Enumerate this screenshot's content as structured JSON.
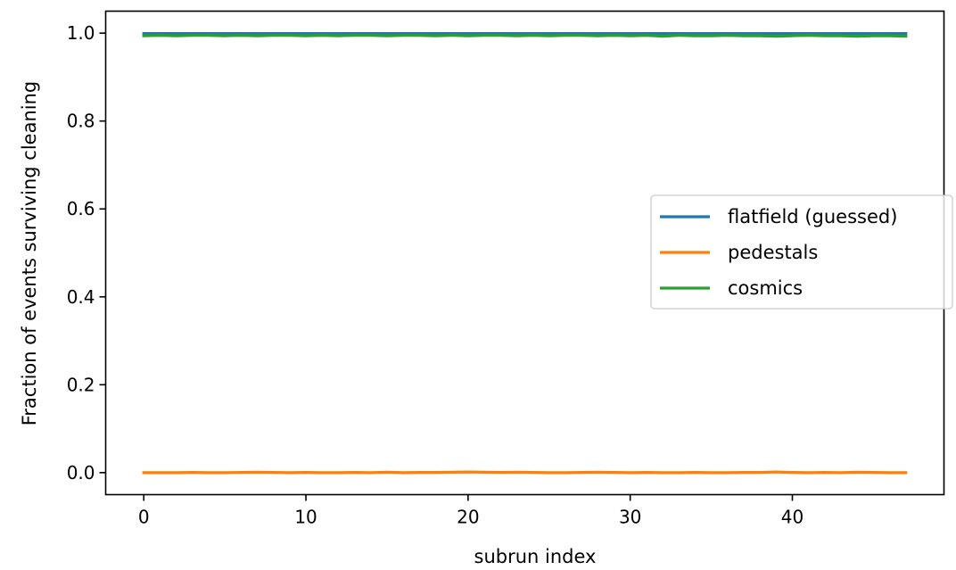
{
  "chart_data": {
    "type": "line",
    "title": "",
    "xlabel": "subrun index",
    "ylabel": "Fraction of events surviving cleaning",
    "xlim": [
      -2.35,
      49.35
    ],
    "ylim": [
      -0.05,
      1.05
    ],
    "xticks": [
      0,
      10,
      20,
      30,
      40
    ],
    "yticks": [
      0.0,
      0.2,
      0.4,
      0.6,
      0.8,
      1.0
    ],
    "xtick_labels": [
      "0",
      "10",
      "20",
      "30",
      "40"
    ],
    "ytick_labels": [
      "0.0",
      "0.2",
      "0.4",
      "0.6",
      "0.8",
      "1.0"
    ],
    "grid": false,
    "legend_position": "center-right",
    "x": [
      0,
      1,
      2,
      3,
      4,
      5,
      6,
      7,
      8,
      9,
      10,
      11,
      12,
      13,
      14,
      15,
      16,
      17,
      18,
      19,
      20,
      21,
      22,
      23,
      24,
      25,
      26,
      27,
      28,
      29,
      30,
      31,
      32,
      33,
      34,
      35,
      36,
      37,
      38,
      39,
      40,
      41,
      42,
      43,
      44,
      45,
      46,
      47
    ],
    "series": [
      {
        "name": "flatfield (guessed)",
        "color": "#1f77b4",
        "values": [
          0.999,
          0.999,
          0.999,
          0.999,
          0.999,
          0.999,
          0.999,
          0.999,
          0.999,
          0.999,
          0.999,
          0.999,
          0.999,
          0.999,
          0.999,
          0.999,
          0.999,
          0.999,
          0.999,
          0.999,
          0.999,
          0.999,
          0.999,
          0.999,
          0.999,
          0.999,
          0.999,
          0.999,
          0.999,
          0.999,
          0.999,
          0.999,
          0.999,
          0.999,
          0.999,
          0.999,
          0.999,
          0.999,
          0.999,
          0.999,
          0.999,
          0.999,
          0.999,
          0.999,
          0.999,
          0.999,
          0.999,
          0.999
        ]
      },
      {
        "name": "pedestals",
        "color": "#ff7f0e",
        "values": [
          0.0,
          0.0,
          0.0,
          0.0005,
          0.0,
          0.0,
          0.0005,
          0.001,
          0.0005,
          0.0,
          0.0005,
          0.0,
          0.0,
          0.0005,
          0.0,
          0.001,
          0.0,
          0.0005,
          0.0005,
          0.001,
          0.0015,
          0.001,
          0.0005,
          0.001,
          0.0005,
          0.0,
          0.0,
          0.0005,
          0.001,
          0.0005,
          0.0,
          0.0005,
          0.0,
          0.0,
          0.0005,
          0.0,
          0.0,
          0.0005,
          0.0005,
          0.0015,
          0.0005,
          0.0,
          0.0005,
          0.0,
          0.001,
          0.0005,
          0.0,
          0.0
        ]
      },
      {
        "name": "cosmics",
        "color": "#2ca02c",
        "values": [
          0.994,
          0.995,
          0.994,
          0.995,
          0.995,
          0.994,
          0.995,
          0.994,
          0.995,
          0.995,
          0.994,
          0.995,
          0.994,
          0.995,
          0.995,
          0.994,
          0.995,
          0.995,
          0.994,
          0.995,
          0.994,
          0.995,
          0.995,
          0.994,
          0.995,
          0.994,
          0.995,
          0.995,
          0.994,
          0.995,
          0.994,
          0.995,
          0.993,
          0.995,
          0.994,
          0.994,
          0.995,
          0.994,
          0.994,
          0.993,
          0.994,
          0.995,
          0.994,
          0.994,
          0.993,
          0.994,
          0.994,
          0.993
        ]
      }
    ]
  }
}
